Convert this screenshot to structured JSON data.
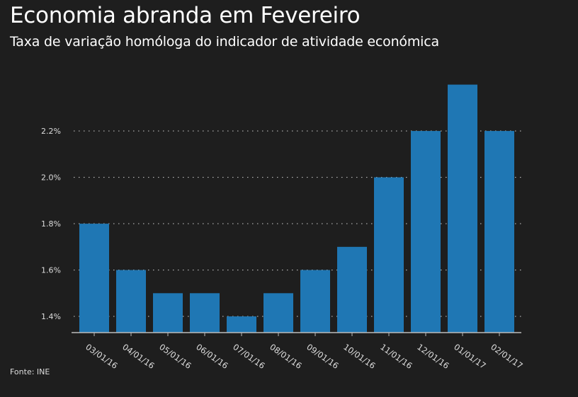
{
  "title": "Economia abranda em Fevereiro",
  "subtitle": "Taxa de variação homóloga do indicador de atividade económica",
  "source": "Fonte: INE",
  "chart_data": {
    "type": "bar",
    "title": "Economia abranda em Fevereiro",
    "subtitle": "Taxa de variação homóloga do indicador de atividade económica",
    "categories": [
      "03/01/16",
      "04/01/16",
      "05/01/16",
      "06/01/16",
      "07/01/16",
      "08/01/16",
      "09/01/16",
      "10/01/16",
      "11/01/16",
      "12/01/16",
      "01/01/17",
      "02/01/17"
    ],
    "values": [
      1.8,
      1.6,
      1.5,
      1.5,
      1.4,
      1.5,
      1.6,
      1.7,
      2.0,
      2.2,
      2.4,
      2.2
    ],
    "yticks": [
      1.4,
      1.6,
      1.8,
      2.0,
      2.2
    ],
    "ytick_labels": [
      "1.4%",
      "1.6%",
      "1.8%",
      "2.0%",
      "2.2%"
    ],
    "ylim": [
      1.33,
      2.6
    ],
    "xlabel": "",
    "ylabel": "",
    "grid": "horizontal-dotted",
    "bar_color": "#1f77b4",
    "background": "#1e1e1e"
  }
}
